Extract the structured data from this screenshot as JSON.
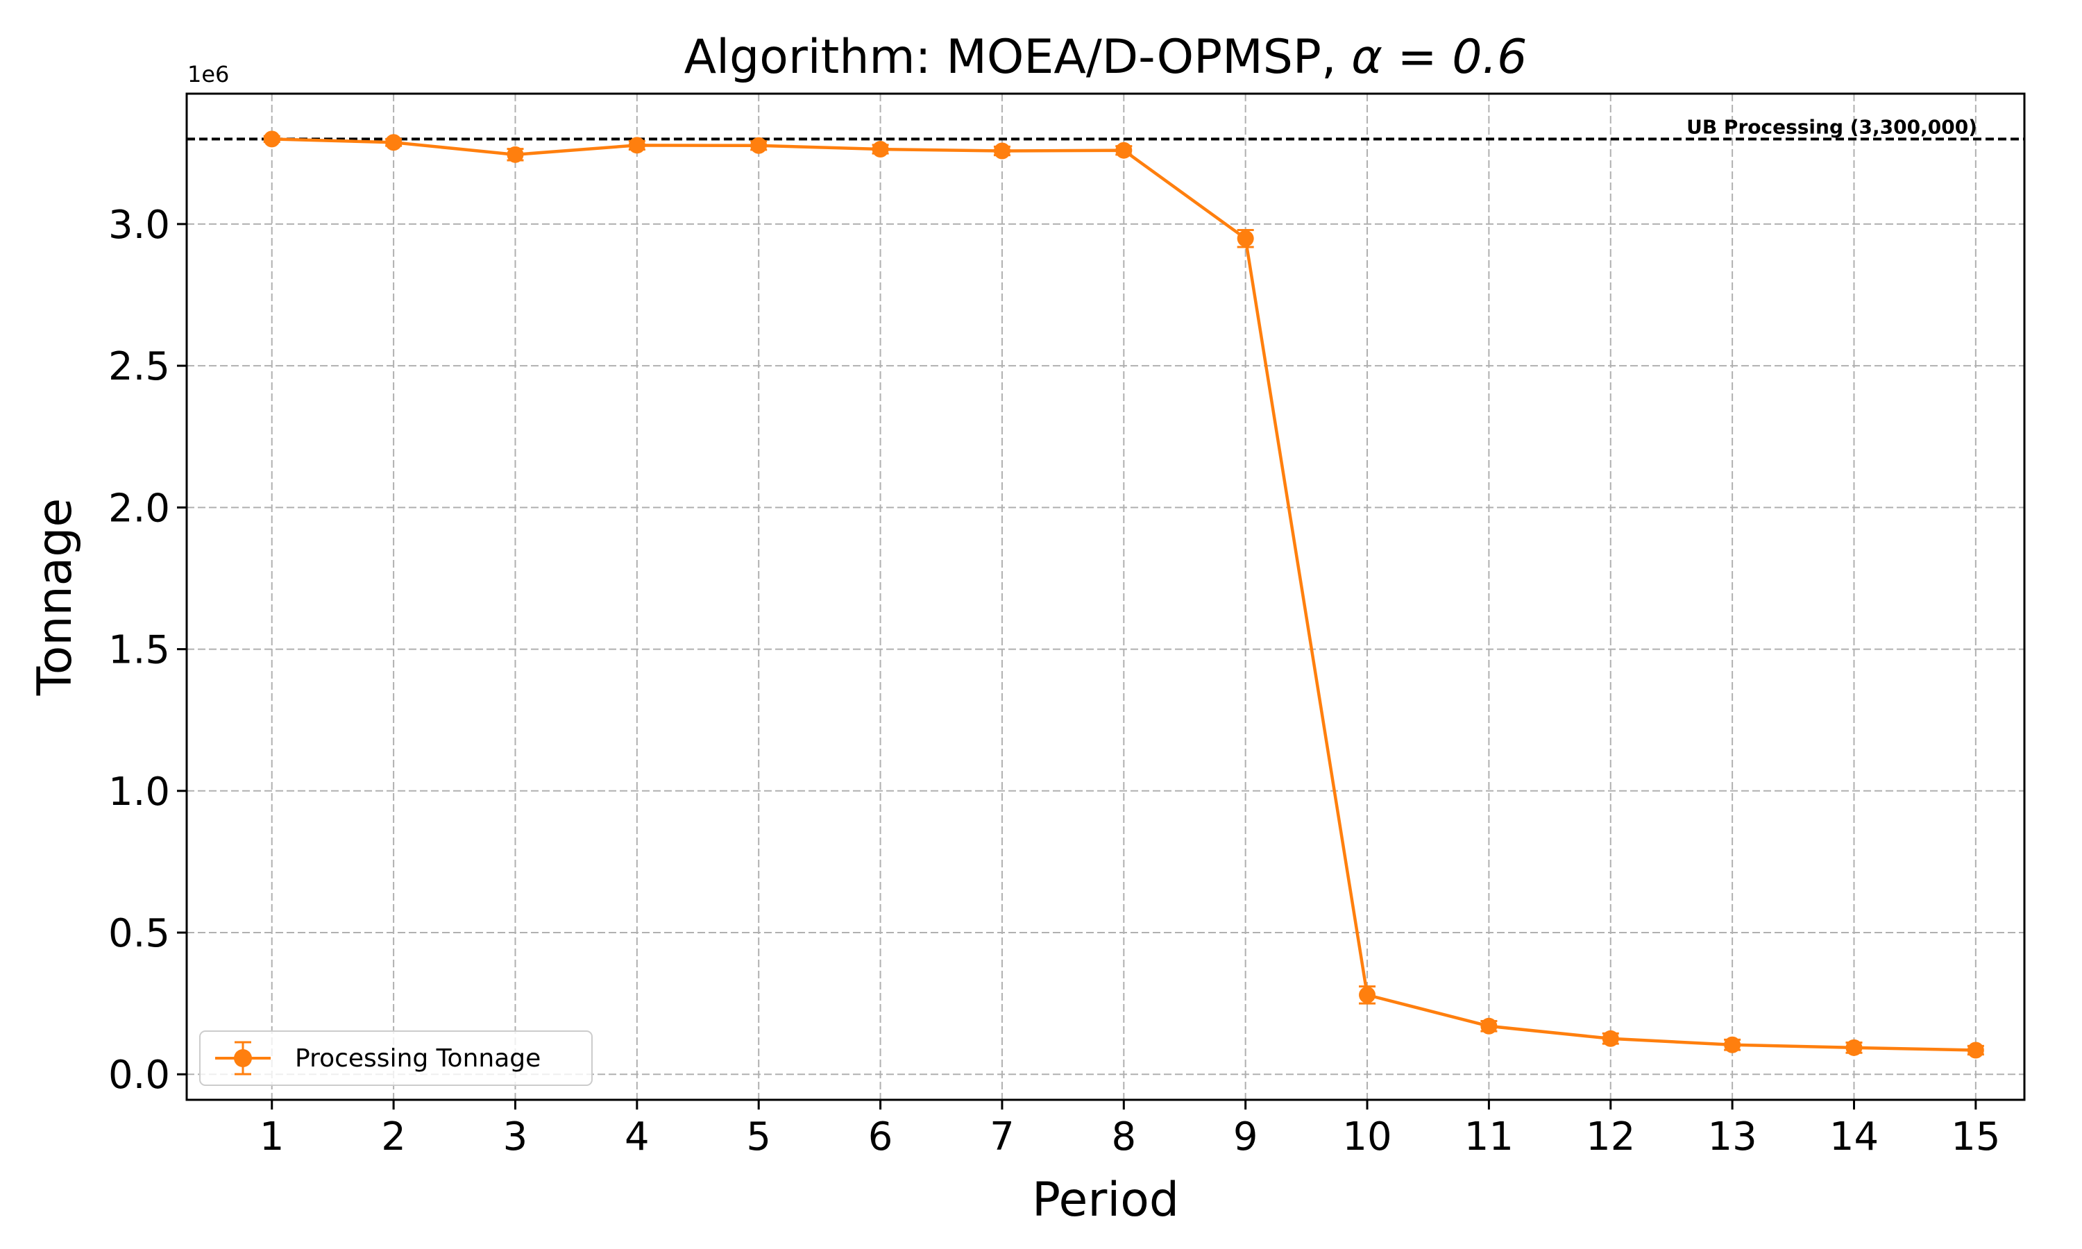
{
  "chart_data": {
    "type": "line",
    "title": "Algorithm: MOEA/D-OPMSP, α = 0.6",
    "title_prefix": "Algorithm: MOEA/D-OPMSP, ",
    "title_alpha": "α = 0.6",
    "xlabel": "Period",
    "ylabel": "Tonnage",
    "y_offset_label": "1e6",
    "xlim": [
      0.3,
      15.4
    ],
    "ylim": [
      -0.09,
      3.46
    ],
    "y_scale_factor": 1000000,
    "x": [
      1,
      2,
      3,
      4,
      5,
      6,
      7,
      8,
      9,
      10,
      11,
      12,
      13,
      14,
      15
    ],
    "xticks": [
      "1",
      "2",
      "3",
      "4",
      "5",
      "6",
      "7",
      "8",
      "9",
      "10",
      "11",
      "12",
      "13",
      "14",
      "15"
    ],
    "yticks": [
      0.0,
      0.5,
      1.0,
      1.5,
      2.0,
      2.5,
      3.0
    ],
    "ytick_labels": [
      "0.0",
      "0.5",
      "1.0",
      "1.5",
      "2.0",
      "2.5",
      "3.0"
    ],
    "grid": true,
    "legend_position": "lower-left",
    "series": [
      {
        "name": "Processing Tonnage",
        "color": "#ff7f0e",
        "marker": "circle",
        "error_bars": true,
        "values": [
          3.3,
          3.288,
          3.245,
          3.278,
          3.277,
          3.264,
          3.258,
          3.26,
          2.949,
          0.28,
          0.17,
          0.126,
          0.104,
          0.094,
          0.085
        ],
        "errors": [
          0.01,
          0.012,
          0.02,
          0.015,
          0.015,
          0.015,
          0.015,
          0.015,
          0.03,
          0.03,
          0.018,
          0.018,
          0.018,
          0.018,
          0.015
        ]
      }
    ],
    "reference_line": {
      "value": 3.3,
      "label": "UB Processing (3,300,000)",
      "color": "#000000",
      "style": "dashed"
    }
  }
}
